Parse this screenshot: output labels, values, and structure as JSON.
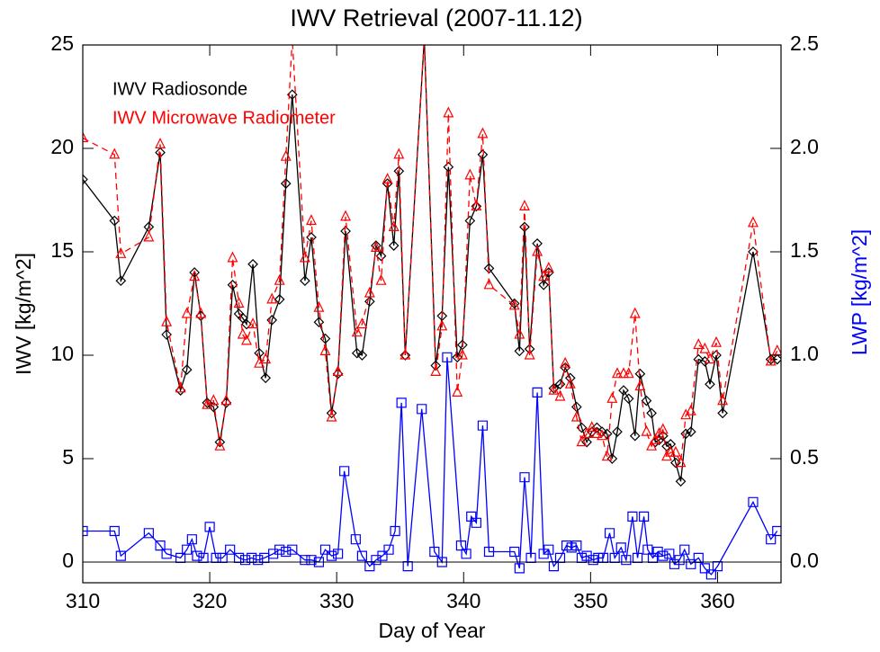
{
  "chart_data": {
    "type": "line",
    "title": "IWV Retrieval (2007-11.12)",
    "xlabel": "Day of Year",
    "ylabel": "IWV [kg/m^2]",
    "y2label": "LWP [kg/m^2]",
    "xlim": [
      310,
      365
    ],
    "xticks": [
      310,
      320,
      330,
      340,
      350,
      360
    ],
    "ylim": [
      -1,
      25
    ],
    "yticks": [
      0,
      5,
      10,
      15,
      20,
      25
    ],
    "y2lim": [
      -0.1,
      2.5
    ],
    "y2ticks": [
      {
        "value": 0,
        "label": "0.0"
      },
      0.5,
      {
        "value": 1,
        "label": "1.0"
      },
      1.5,
      {
        "value": 2,
        "label": "2.0"
      },
      2.5
    ],
    "zero_line": true,
    "series": [
      {
        "name": "IWV Radiosonde",
        "color": "#000000",
        "marker": "diamond",
        "dash": false,
        "x": [
          310,
          312.5,
          313.0,
          315.2,
          316.1,
          316.6,
          317.7,
          318.2,
          318.8,
          319.3,
          319.8,
          320.3,
          320.8,
          321.3,
          321.8,
          322.3,
          322.6,
          322.9,
          323.4,
          323.9,
          324.4,
          324.9,
          325.5,
          326.0,
          326.5,
          327.5,
          328.0,
          328.6,
          329.1,
          329.6,
          330.1,
          330.7,
          331.6,
          332.0,
          332.6,
          333.1,
          333.5,
          334.0,
          334.5,
          334.9,
          335.4,
          336.9,
          337.8,
          338.3,
          338.8,
          339.5,
          339.9,
          340.5,
          341.0,
          341.5,
          342.0,
          344.0,
          344.4,
          344.8,
          345.2,
          345.8,
          346.3,
          346.7,
          347.1,
          347.6,
          348.0,
          348.4,
          348.9,
          349.3,
          349.7,
          350.1,
          350.5,
          350.9,
          351.3,
          351.7,
          352.1,
          352.6,
          353.0,
          353.5,
          353.9,
          354.4,
          354.8,
          355.1,
          355.4,
          355.7,
          356.0,
          356.3,
          356.7,
          357.1,
          357.5,
          357.9,
          358.5,
          359.0,
          359.4,
          359.9,
          360.4,
          362.8,
          364.2,
          364.7
        ],
        "values": [
          18.5,
          16.5,
          13.6,
          16.2,
          19.8,
          11.0,
          8.3,
          9.3,
          14.0,
          11.9,
          7.7,
          7.5,
          5.8,
          7.7,
          13.4,
          12.0,
          11.8,
          11.5,
          14.4,
          10.1,
          8.9,
          11.7,
          12.7,
          18.3,
          22.6,
          13.6,
          15.7,
          11.6,
          10.8,
          7.2,
          9.1,
          16.0,
          10.1,
          10.0,
          12.6,
          15.3,
          14.8,
          18.3,
          15.3,
          18.9,
          10.0,
          25.3,
          9.5,
          11.9,
          19.1,
          9.9,
          10.5,
          16.5,
          17.2,
          19.7,
          14.2,
          12.5,
          10.2,
          16.2,
          10.3,
          15.4,
          13.4,
          14.0,
          8.4,
          8.6,
          9.4,
          8.9,
          7.5,
          6.5,
          5.8,
          6.3,
          6.5,
          6.3,
          6.2,
          5.0,
          6.3,
          8.3,
          7.9,
          6.1,
          9.1,
          7.8,
          7.2,
          5.8,
          5.9,
          6.1,
          5.6,
          5.7,
          4.8,
          3.9,
          6.2,
          6.3,
          9.8,
          9.7,
          8.6,
          10.0,
          7.2,
          15.0,
          9.8,
          9.8
        ]
      },
      {
        "name": "IWV Microwave Radiometer",
        "color": "#ff0000",
        "marker": "triangle",
        "dash": true,
        "x": [
          310,
          312.5,
          313.0,
          315.2,
          316.1,
          316.6,
          317.7,
          318.2,
          318.8,
          319.3,
          319.8,
          320.3,
          320.8,
          321.3,
          321.8,
          322.3,
          322.6,
          322.9,
          323.4,
          323.9,
          324.4,
          324.9,
          325.5,
          326.0,
          326.5,
          327.5,
          328.0,
          328.6,
          329.1,
          329.6,
          330.1,
          330.7,
          331.6,
          332.0,
          332.6,
          333.1,
          333.5,
          334.0,
          334.5,
          334.9,
          335.4,
          336.9,
          337.8,
          338.3,
          338.8,
          339.5,
          339.9,
          340.5,
          341.0,
          341.5,
          342.0,
          344.0,
          344.4,
          344.8,
          345.2,
          345.8,
          346.3,
          346.7,
          347.1,
          347.6,
          348.0,
          348.4,
          348.9,
          349.3,
          349.7,
          350.1,
          350.5,
          350.9,
          351.3,
          351.7,
          352.1,
          352.6,
          353.0,
          353.5,
          353.9,
          354.4,
          354.8,
          355.1,
          355.4,
          355.7,
          356.0,
          356.3,
          356.7,
          357.1,
          357.5,
          357.9,
          358.5,
          359.0,
          359.4,
          359.9,
          360.4,
          362.8,
          364.2,
          364.7
        ],
        "values": [
          20.5,
          19.7,
          14.9,
          15.7,
          20.2,
          11.6,
          8.4,
          12.0,
          13.8,
          12.0,
          7.6,
          7.8,
          5.6,
          7.8,
          14.7,
          12.5,
          11.0,
          10.7,
          11.5,
          9.6,
          9.8,
          12.7,
          13.6,
          19.6,
          25.3,
          14.7,
          16.5,
          12.3,
          10.2,
          7.0,
          9.2,
          16.7,
          11.1,
          11.5,
          13.0,
          15.2,
          13.6,
          18.5,
          16.2,
          19.7,
          10.0,
          25.3,
          9.2,
          11.4,
          21.7,
          8.2,
          10.0,
          18.7,
          17.2,
          20.7,
          13.4,
          12.4,
          11.0,
          17.2,
          10.0,
          15.0,
          13.8,
          14.2,
          8.3,
          8.0,
          9.6,
          8.6,
          7.0,
          5.8,
          6.2,
          6.5,
          6.2,
          6.1,
          5.1,
          7.9,
          9.1,
          9.1,
          9.1,
          12.0,
          8.5,
          6.3,
          5.6,
          5.9,
          6.2,
          6.4,
          5.1,
          5.3,
          5.3,
          4.8,
          7.1,
          7.3,
          10.5,
          10.3,
          9.8,
          10.6,
          7.8,
          16.4,
          9.7,
          10.2
        ]
      },
      {
        "name": "LWP",
        "color": "#0000ff",
        "marker": "square",
        "dash": false,
        "axis": "y2",
        "x": [
          310,
          312.5,
          313.0,
          315.2,
          316.1,
          316.6,
          317.7,
          318.2,
          318.6,
          319.0,
          319.5,
          320.0,
          320.5,
          321.0,
          321.6,
          322.3,
          322.8,
          323.3,
          323.8,
          324.3,
          325.0,
          325.5,
          326.0,
          326.5,
          327.5,
          328.0,
          328.6,
          329.1,
          329.6,
          330.1,
          330.6,
          331.5,
          332.0,
          332.6,
          333.1,
          333.6,
          334.1,
          334.6,
          335.1,
          335.6,
          336.7,
          337.7,
          338.3,
          338.7,
          339.8,
          340.2,
          340.6,
          341.0,
          341.5,
          342.0,
          344.0,
          344.4,
          344.8,
          345.3,
          345.8,
          346.3,
          346.7,
          347.1,
          347.6,
          348.1,
          348.5,
          348.9,
          349.3,
          349.7,
          350.2,
          350.6,
          351.0,
          351.5,
          351.9,
          352.4,
          352.8,
          353.3,
          353.7,
          354.2,
          354.5,
          354.9,
          355.3,
          355.7,
          356.2,
          356.6,
          357.0,
          357.4,
          357.9,
          358.5,
          359.0,
          359.5,
          360.0,
          362.8,
          364.2,
          364.7
        ],
        "values": [
          0.15,
          0.15,
          0.03,
          0.14,
          0.08,
          0.04,
          0.02,
          0.06,
          0.11,
          0.03,
          0.02,
          0.17,
          0.02,
          0.02,
          0.06,
          0.02,
          0.01,
          0.02,
          0.01,
          0.02,
          0.04,
          0.06,
          0.05,
          0.06,
          0.01,
          0.01,
          0.0,
          0.06,
          0.03,
          0.04,
          0.44,
          0.11,
          0.03,
          -0.02,
          0.01,
          0.03,
          0.06,
          0.15,
          0.77,
          -0.02,
          0.74,
          0.05,
          0.0,
          0.99,
          0.08,
          0.04,
          0.22,
          0.19,
          0.66,
          0.05,
          0.05,
          -0.03,
          0.41,
          0.02,
          0.82,
          0.04,
          0.06,
          -0.02,
          0.02,
          0.08,
          0.07,
          0.08,
          0.02,
          0.03,
          0.01,
          0.02,
          0.02,
          0.14,
          0.02,
          0.07,
          0.01,
          0.22,
          0.02,
          0.22,
          0.06,
          0.02,
          0.05,
          0.03,
          0.04,
          -0.01,
          0.01,
          0.06,
          -0.01,
          0.02,
          -0.03,
          -0.06,
          -0.02,
          0.29,
          0.11,
          0.15
        ]
      }
    ]
  }
}
